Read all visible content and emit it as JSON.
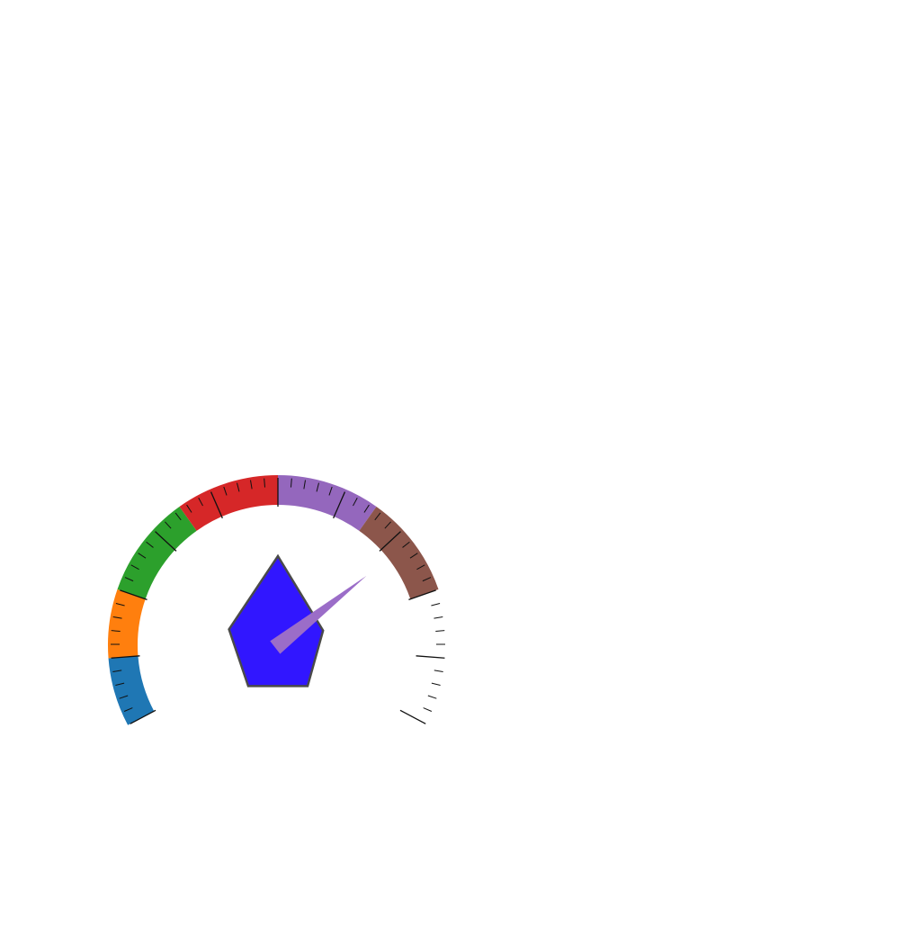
{
  "chart_data": {
    "type": "gauge",
    "scale": {
      "min": 0,
      "max": 1
    },
    "value": 0.72,
    "bands": [
      {
        "from": 0.0,
        "to": 0.1,
        "color": "#1f77b4"
      },
      {
        "from": 0.1,
        "to": 0.2,
        "color": "#ff7f0e"
      },
      {
        "from": 0.2,
        "to": 0.35,
        "color": "#2ca02c"
      },
      {
        "from": 0.35,
        "to": 0.5,
        "color": "#d62728"
      },
      {
        "from": 0.5,
        "to": 0.65,
        "color": "#9467bd"
      },
      {
        "from": 0.65,
        "to": 0.8,
        "color": "#8c564b"
      }
    ],
    "ticks": {
      "major": 10,
      "minor_per_major": 5
    },
    "needle_color": "#9b6dc8",
    "pentagon": {
      "fill": "#3116ff",
      "stroke": "#4a4a4a",
      "values": [
        0.9,
        0.48,
        0.51,
        0.51,
        0.52
      ]
    },
    "grid": false,
    "legend": "none"
  }
}
